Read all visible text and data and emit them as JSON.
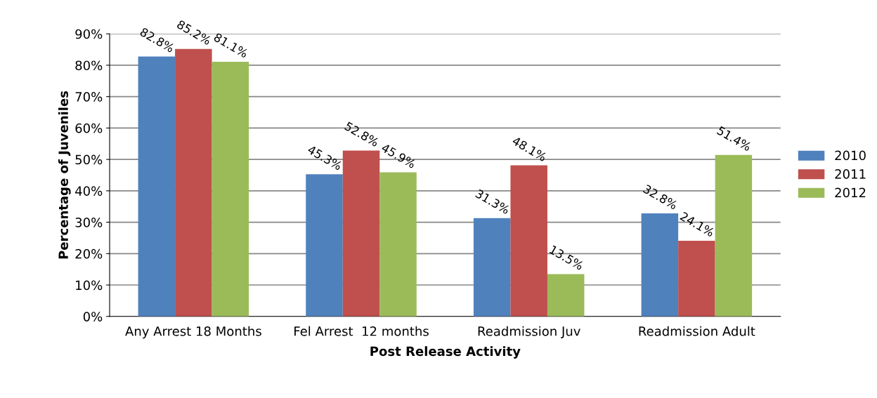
{
  "chart_data": {
    "type": "bar",
    "xlabel": "Post Release Activity",
    "ylabel": "Percentage of Juveniles",
    "categories": [
      "Any Arrest 18 Months",
      "Fel Arrest  12 months",
      "Readmission Juv",
      "Readmission Adult"
    ],
    "series": [
      {
        "name": "2010",
        "color": "#4f81bd",
        "values": [
          82.8,
          45.3,
          31.3,
          32.8
        ],
        "value_labels": [
          "82.8%",
          "45.3%",
          "31.3%",
          "32.8%"
        ]
      },
      {
        "name": "2011",
        "color": "#c0504d",
        "values": [
          85.2,
          52.8,
          48.1,
          24.1
        ],
        "value_labels": [
          "85.2%",
          "52.8%",
          "48.1%",
          "24.1%"
        ]
      },
      {
        "name": "2012",
        "color": "#9bbb59",
        "values": [
          81.1,
          45.9,
          13.5,
          51.4
        ],
        "value_labels": [
          "81.1%",
          "45.9%",
          "13.5%",
          "51.4%"
        ]
      }
    ],
    "ylim": [
      0,
      90
    ],
    "yticks": [
      {
        "value": 0,
        "label": "0%"
      },
      {
        "value": 10,
        "label": "10%"
      },
      {
        "value": 20,
        "label": "20%"
      },
      {
        "value": 30,
        "label": "30%"
      },
      {
        "value": 40,
        "label": "40%"
      },
      {
        "value": 50,
        "label": "50%"
      },
      {
        "value": 60,
        "label": "60%"
      },
      {
        "value": 70,
        "label": "70%"
      },
      {
        "value": 80,
        "label": "80%"
      },
      {
        "value": 90,
        "label": "90%"
      }
    ],
    "grid": "y",
    "legend": "right"
  }
}
